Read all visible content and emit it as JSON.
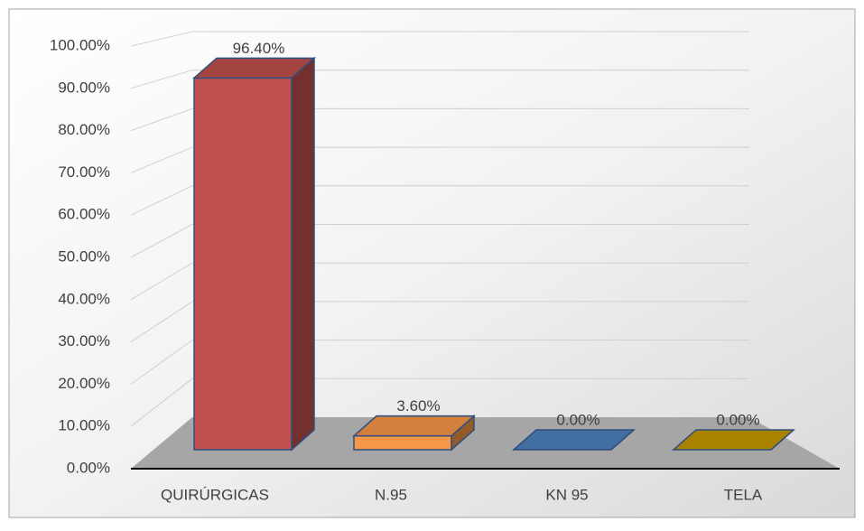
{
  "chart_data": {
    "type": "bar3d",
    "categories": [
      "QUIRÚRGICAS",
      "N.95",
      "KN 95",
      "TELA"
    ],
    "values": [
      96.4,
      3.6,
      0,
      0
    ],
    "value_labels": [
      "96.40%",
      "3.60%",
      "0.00%",
      "0.00%"
    ],
    "colors": [
      "#c0504d",
      "#f79646",
      "#4f81bd",
      "#c79a00"
    ],
    "ylim": [
      0,
      100
    ],
    "yticks": [
      {
        "value": 0,
        "label": "0.00%"
      },
      {
        "value": 10,
        "label": "10.00%"
      },
      {
        "value": 20,
        "label": "20.00%"
      },
      {
        "value": 30,
        "label": "30.00%"
      },
      {
        "value": 40,
        "label": "40.00%"
      },
      {
        "value": 50,
        "label": "50.00%"
      },
      {
        "value": 60,
        "label": "60.00%"
      },
      {
        "value": 70,
        "label": "70.00%"
      },
      {
        "value": 80,
        "label": "80.00%"
      },
      {
        "value": 90,
        "label": "90.00%"
      },
      {
        "value": 100,
        "label": "100.00%"
      }
    ],
    "grid": true
  }
}
